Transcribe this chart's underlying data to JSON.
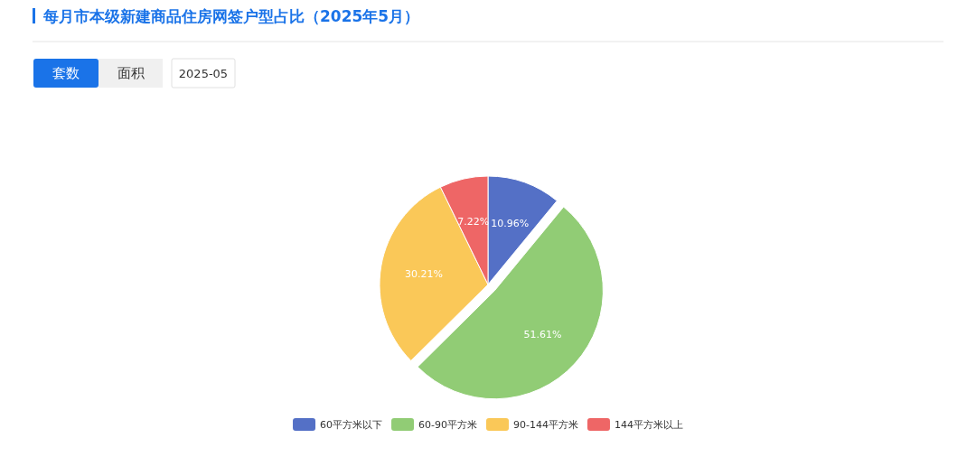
{
  "chart_data": {
    "type": "pie",
    "title": "每月市本级新建商品住房网签户型占比（2025年5月）",
    "categories": [
      "60平方米以下",
      "60-90平方米",
      "90-144平方米",
      "144平方米以上"
    ],
    "values": [
      10.96,
      51.61,
      30.21,
      7.22
    ],
    "value_labels": [
      "10.96%",
      "51.61%",
      "30.21%",
      "7.22%"
    ],
    "colors": [
      "#5470c6",
      "#91cc75",
      "#fac858",
      "#ee6666"
    ],
    "legend": "bottom",
    "annotations": [
      "套数",
      "面积",
      "2025-05"
    ]
  }
}
